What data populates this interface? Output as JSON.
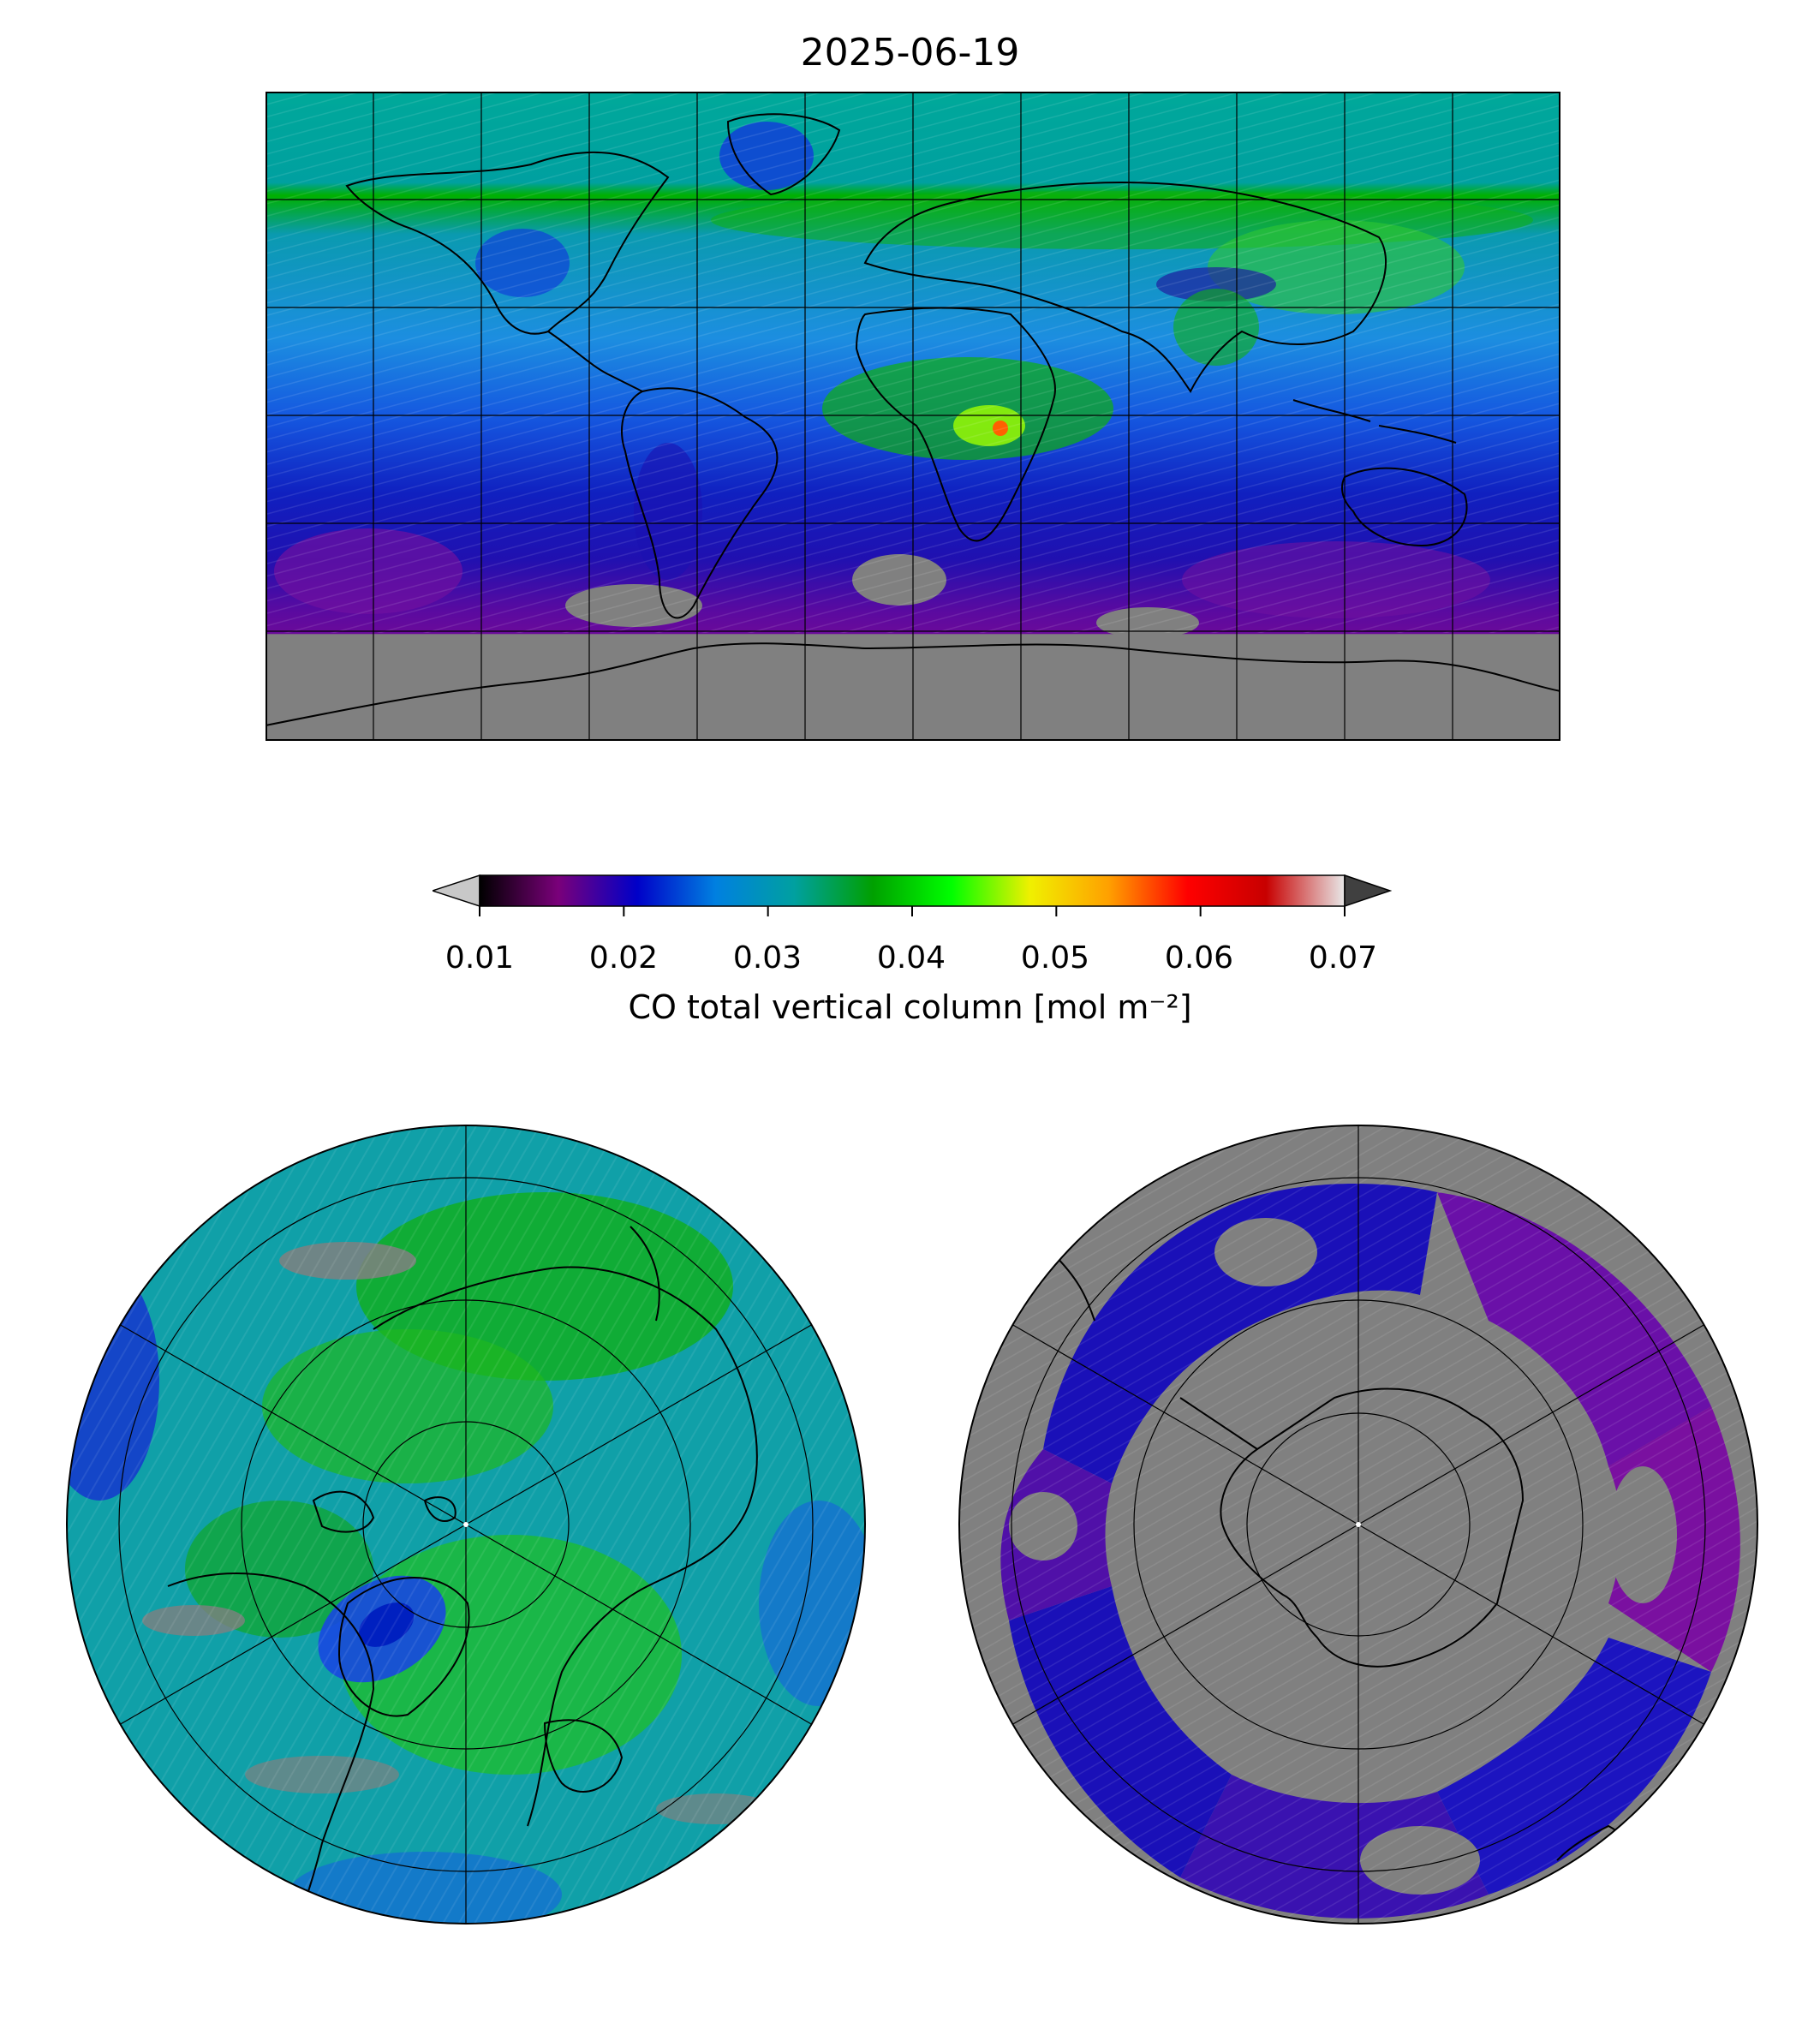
{
  "title": "2025-06-19",
  "colorbar": {
    "label": "CO total vertical column [mol m⁻²]",
    "ticks": [
      "0.01",
      "0.02",
      "0.03",
      "0.04",
      "0.05",
      "0.06",
      "0.07"
    ],
    "range": [
      0.01,
      0.07
    ],
    "extend": "both",
    "under_color": "#c8c8c8",
    "over_color": "#404040",
    "stops": [
      "#000000",
      "#7a007a",
      "#0000c8",
      "#0080e0",
      "#00a0a0",
      "#00a000",
      "#00ff00",
      "#f0f000",
      "#ffa000",
      "#ff0000",
      "#c80000",
      "#e8e8e8"
    ]
  },
  "colors": {
    "no_data": "#808080",
    "coastline": "#000000"
  },
  "maps": {
    "global": {
      "projection": "plate-carree",
      "gridlines": "on"
    },
    "north_polar": {
      "projection": "north-polar-stereographic",
      "gridlines": "on"
    },
    "south_polar": {
      "projection": "south-polar-stereographic",
      "gridlines": "on"
    }
  }
}
